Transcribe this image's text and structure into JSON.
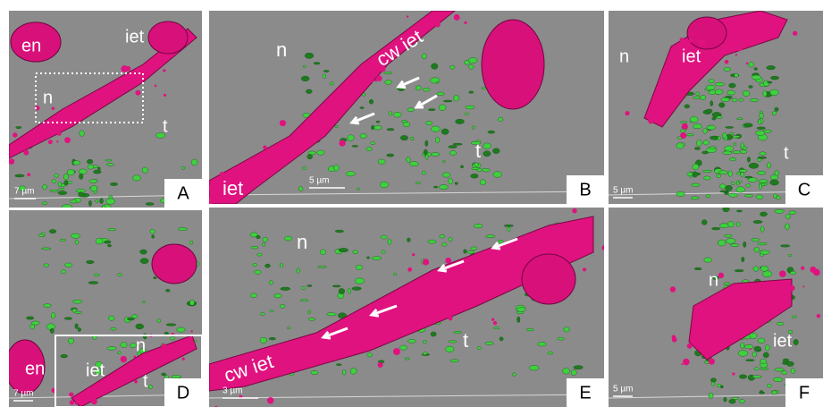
{
  "panels": [
    {
      "label": "A",
      "scale_bar": "7 µm",
      "annotations": [
        "en",
        "iet",
        "n",
        "t"
      ]
    },
    {
      "label": "B",
      "scale_bar": "5 µm",
      "annotations": [
        "n",
        "cw iet",
        "t",
        "iet"
      ]
    },
    {
      "label": "C",
      "scale_bar": "5 µm",
      "annotations": [
        "n",
        "iet",
        "t"
      ]
    },
    {
      "label": "D",
      "scale_bar": "7 µm",
      "annotations": [
        "en",
        "iet",
        "n",
        "t"
      ]
    },
    {
      "label": "E",
      "scale_bar": "3 µm",
      "annotations": [
        "n",
        "cw iet",
        "t"
      ]
    },
    {
      "label": "F",
      "scale_bar": "5 µm",
      "annotations": [
        "n",
        "iet"
      ]
    }
  ]
}
